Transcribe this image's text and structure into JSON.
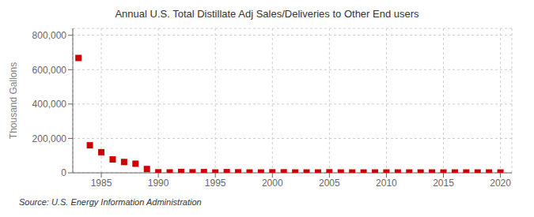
{
  "chart_data": {
    "type": "scatter",
    "title": "Annual U.S. Total Distillate Adj Sales/Deliveries to Other End users",
    "ylabel": "Thousand Gallons",
    "source": "Source: U.S. Energy Information Administration",
    "color": "#cc0000",
    "marker": "square",
    "grid": true,
    "xlim": [
      1982.5,
      2021
    ],
    "ylim": [
      0,
      840000
    ],
    "xticks": [
      1985,
      1990,
      1995,
      2000,
      2005,
      2010,
      2015,
      2020
    ],
    "yticks": [
      0,
      {
        "value": 200000,
        "label": "200,000"
      },
      {
        "value": 400000,
        "label": "400,000"
      },
      {
        "value": 600000,
        "label": "600,000"
      },
      {
        "value": 800000,
        "label": "800,000"
      }
    ],
    "x": [
      1983,
      1984,
      1985,
      1986,
      1987,
      1988,
      1989,
      1990,
      1991,
      1992,
      1993,
      1994,
      1995,
      1996,
      1997,
      1998,
      1999,
      2000,
      2001,
      2002,
      2003,
      2004,
      2005,
      2006,
      2007,
      2008,
      2009,
      2010,
      2011,
      2012,
      2013,
      2014,
      2015,
      2016,
      2017,
      2018,
      2019,
      2020
    ],
    "values": [
      668000,
      160000,
      120000,
      78000,
      63000,
      53000,
      22000,
      3000,
      2500,
      5000,
      3000,
      4000,
      2000,
      4000,
      3000,
      2000,
      2000,
      3000,
      3000,
      2000,
      2000,
      2000,
      3000,
      2000,
      2000,
      2000,
      2000,
      2000,
      2000,
      2000,
      2000,
      2000,
      2000,
      2000,
      2000,
      2000,
      2000,
      2000
    ]
  }
}
